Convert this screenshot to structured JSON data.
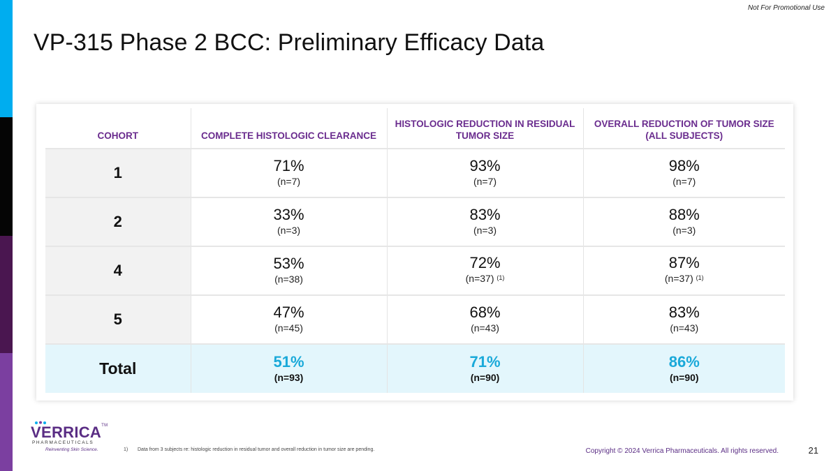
{
  "tagline": "Not For Promotional Use",
  "title": "VP-315 Phase 2 BCC: Preliminary Efficacy Data",
  "brand_colors": {
    "purple": "#6a2c8e",
    "cyan": "#1aa9d9",
    "total_bg": "#e3f6fc"
  },
  "table": {
    "headers": [
      "COHORT",
      "COMPLETE HISTOLOGIC CLEARANCE",
      "HISTOLOGIC REDUCTION IN RESIDUAL TUMOR SIZE",
      "OVERALL REDUCTION OF TUMOR SIZE (ALL SUBJECTS)"
    ],
    "rows": [
      {
        "cohort": "1",
        "c1_pct": "71%",
        "c1_n": "(n=7)",
        "c2_pct": "93%",
        "c2_n": "(n=7)",
        "c3_pct": "98%",
        "c3_n": "(n=7)"
      },
      {
        "cohort": "2",
        "c1_pct": "33%",
        "c1_n": "(n=3)",
        "c2_pct": "83%",
        "c2_n": "(n=3)",
        "c3_pct": "88%",
        "c3_n": "(n=3)"
      },
      {
        "cohort": "4",
        "c1_pct": "53%",
        "c1_n": "(n=38)",
        "c2_pct": "72%",
        "c2_n": "(n=37)",
        "c2_sup": "(1)",
        "c3_pct": "87%",
        "c3_n": "(n=37)",
        "c3_sup": "(1)"
      },
      {
        "cohort": "5",
        "c1_pct": "47%",
        "c1_n": "(n=45)",
        "c2_pct": "68%",
        "c2_n": "(n=43)",
        "c3_pct": "83%",
        "c3_n": "(n=43)"
      }
    ],
    "total": {
      "cohort": "Total",
      "c1_pct": "51%",
      "c1_n": "(n=93)",
      "c2_pct": "71%",
      "c2_n": "(n=90)",
      "c3_pct": "86%",
      "c3_n": "(n=90)"
    }
  },
  "logo": {
    "word": "VERRICA",
    "tm": "TM",
    "sub": "PHARMACEUTICALS",
    "tag": "Reinventing Skin Science."
  },
  "footnote": {
    "num": "1)",
    "text": "Data from 3 subjects re: histologic reduction in residual tumor and overall reduction in tumor size are pending."
  },
  "copyright": "Copyright © 2024 Verrica Pharmaceuticals. All rights reserved.",
  "page_number": "21"
}
